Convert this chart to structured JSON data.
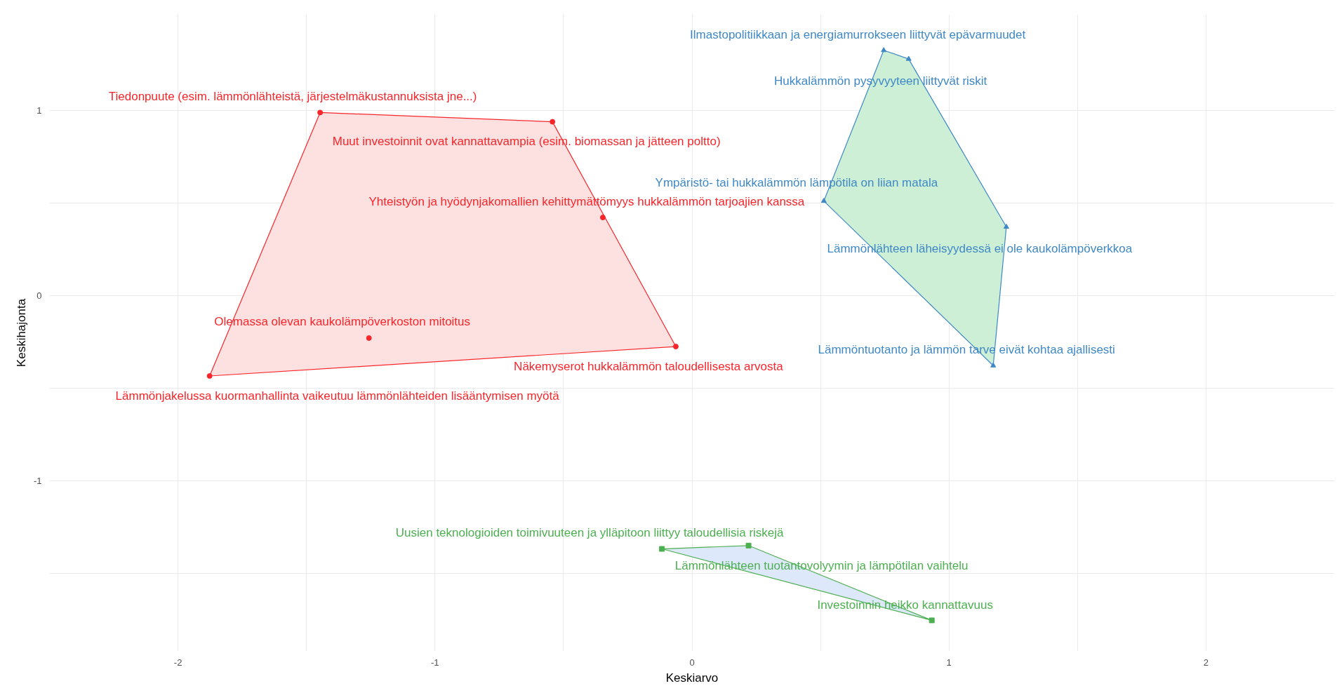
{
  "chart_data": {
    "type": "scatter",
    "xlabel": "Keskiarvo",
    "ylabel": "Keskihajonta",
    "xlim": [
      -2.5,
      2.5
    ],
    "ylim": [
      -1.92,
      1.52
    ],
    "xticks": [
      -2,
      {
        "value": -1.5,
        "label": null
      },
      -1,
      {
        "value": -0.5,
        "label": null
      },
      0,
      {
        "value": 0.5,
        "label": null
      },
      1,
      {
        "value": 1.5,
        "label": null
      },
      2
    ],
    "yticks": [
      {
        "value": -1.5,
        "label": null
      },
      -1,
      {
        "value": -0.5,
        "label": null
      },
      0,
      {
        "value": 0.5,
        "label": null
      },
      1
    ],
    "grid": true,
    "series": [
      {
        "type": "area",
        "color": "#fde1e0",
        "x": [
          -1.447,
          -0.543,
          -0.063,
          -1.877
        ],
        "values": [
          0.99,
          0.94,
          -0.274,
          -0.433
        ]
      },
      {
        "color": "#f8262b",
        "marker": "circle",
        "x": [
          -1.447,
          -0.543,
          -0.347,
          -0.063,
          -1.257,
          -1.877
        ],
        "values": [
          0.99,
          0.94,
          0.423,
          -0.274,
          -0.228,
          -0.433
        ]
      },
      {
        "type": "area",
        "color": "#ccefd6",
        "x": [
          0.746,
          0.843,
          1.223,
          1.172,
          0.513
        ],
        "values": [
          1.326,
          1.279,
          0.372,
          -0.377,
          0.512
        ]
      },
      {
        "color": "#3f88c5",
        "marker": "triangle",
        "x": [
          0.746,
          0.843,
          0.513,
          1.223,
          1.172
        ],
        "values": [
          1.326,
          1.279,
          0.512,
          0.372,
          -0.377
        ]
      },
      {
        "type": "area",
        "color": "#dde8fb",
        "x": [
          -0.117,
          0.22,
          0.933
        ],
        "values": [
          -1.367,
          -1.349,
          -1.753
        ]
      },
      {
        "color": "#4caf50",
        "marker": "square",
        "x": [
          -0.117,
          0.22,
          0.933
        ],
        "values": [
          -1.367,
          -1.349,
          -1.753
        ]
      }
    ],
    "annotations": [
      {
        "text": "Tiedonpuute (esim. lämmönlähteistä, järjestelmäkustannuksista jne...)",
        "x": -1.447,
        "y": 0.99
      },
      {
        "text": "Muut investoinnit ovat kannattavampia (esim. biomassan ja jätteen poltto)",
        "x": -0.543,
        "y": 0.94
      },
      {
        "text": "Yhteistyön ja hyödynjakomallien kehittymättömyys hukkalämmön tarjoajien kanssa",
        "x": -0.347,
        "y": 0.423
      },
      {
        "text": "Olemassa olevan kaukolämpöverkoston mitoitus",
        "x": -1.257,
        "y": -0.228
      },
      {
        "text": "Näkemyserot hukkalämmön taloudellisesta arvosta",
        "x": -0.063,
        "y": -0.274
      },
      {
        "text": "Lämmönjakelussa kuormanhallinta vaikeutuu lämmönlähteiden lisääntymisen myötä",
        "x": -1.877,
        "y": -0.433
      },
      {
        "text": "Ilmastopolitiikkaan ja energiamurrokseen liittyvät epävarmuudet",
        "x": 0.746,
        "y": 1.326
      },
      {
        "text": "Hukkalämmön pysyvyyteen liittyvät riskit",
        "x": 0.843,
        "y": 1.279
      },
      {
        "text": "Ympäristö- tai hukkalämmön lämpötila on liian matala",
        "x": 0.513,
        "y": 0.512
      },
      {
        "text": "Lämmönlähteen läheisyydessä ei ole kaukolämpöverkkoa",
        "x": 1.223,
        "y": 0.372
      },
      {
        "text": "Lämmöntuotanto ja lämmön tarve eivät kohtaa ajallisesti",
        "x": 1.172,
        "y": -0.377
      },
      {
        "text": "Uusien teknologioiden toimivuuteen ja ylläpitoon liittyy taloudellisia riskejä",
        "x": -0.117,
        "y": -1.367
      },
      {
        "text": "Lämmönlähteen tuotantovolyymin ja lämpötilan vaihtelu",
        "x": 0.22,
        "y": -1.349
      },
      {
        "text": "Investoinnin heikko kannattavuus",
        "x": 0.933,
        "y": -1.753
      }
    ]
  }
}
